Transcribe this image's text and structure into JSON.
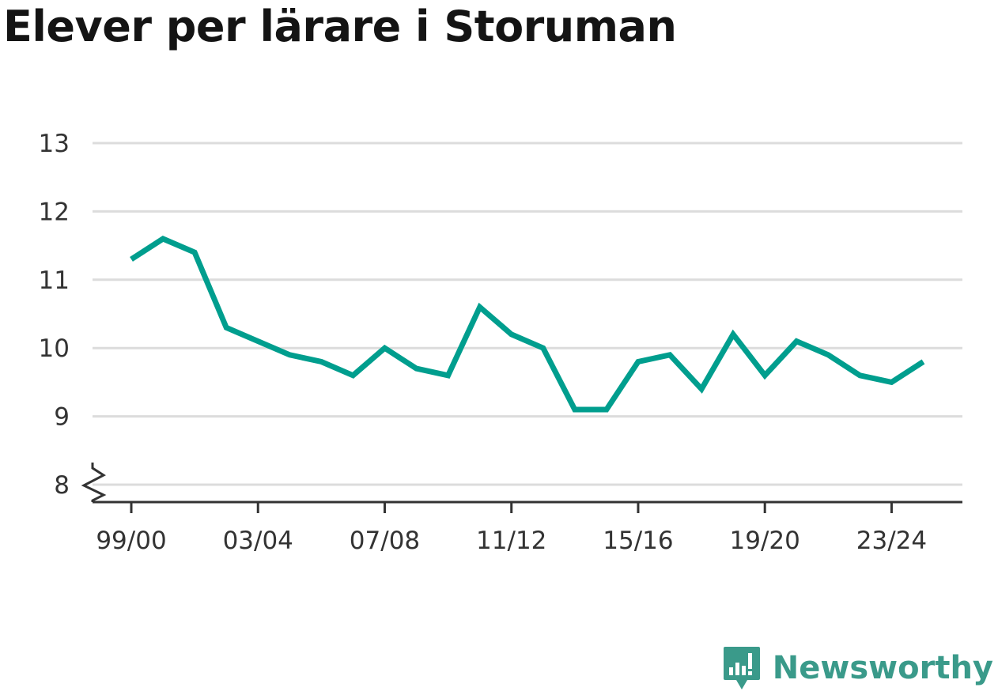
{
  "title": "Elever per lärare i Storuman",
  "brand": {
    "name": "Newsworthy",
    "logo_icon": "bar-chart-bubble-icon",
    "color": "#3a9a8a"
  },
  "colors": {
    "line": "#009e8e",
    "grid": "#dcdcdc",
    "axis": "#333333"
  },
  "chart_data": {
    "type": "line",
    "title": "Elever per lärare i Storuman",
    "xlabel": "",
    "ylabel": "",
    "x": [
      "99/00",
      "00/01",
      "01/02",
      "02/03",
      "03/04",
      "04/05",
      "05/06",
      "06/07",
      "07/08",
      "08/09",
      "09/10",
      "10/11",
      "11/12",
      "12/13",
      "13/14",
      "14/15",
      "15/16",
      "16/17",
      "17/18",
      "18/19",
      "19/20",
      "20/21",
      "21/22",
      "22/23",
      "23/24",
      "24/25"
    ],
    "x_tick_labels": [
      "99/00",
      "03/04",
      "07/08",
      "11/12",
      "15/16",
      "19/20",
      "23/24"
    ],
    "y_ticks": [
      8,
      9,
      10,
      11,
      12,
      13
    ],
    "ylim": [
      8,
      13
    ],
    "y_axis_break": true,
    "grid": true,
    "series": [
      {
        "values": [
          11.3,
          11.6,
          11.4,
          10.3,
          10.1,
          9.9,
          9.8,
          9.6,
          10.0,
          9.7,
          9.6,
          10.6,
          10.2,
          10.0,
          9.1,
          9.1,
          9.8,
          9.9,
          9.4,
          10.2,
          9.6,
          10.1,
          9.9,
          9.6,
          9.5,
          9.8
        ]
      }
    ]
  }
}
